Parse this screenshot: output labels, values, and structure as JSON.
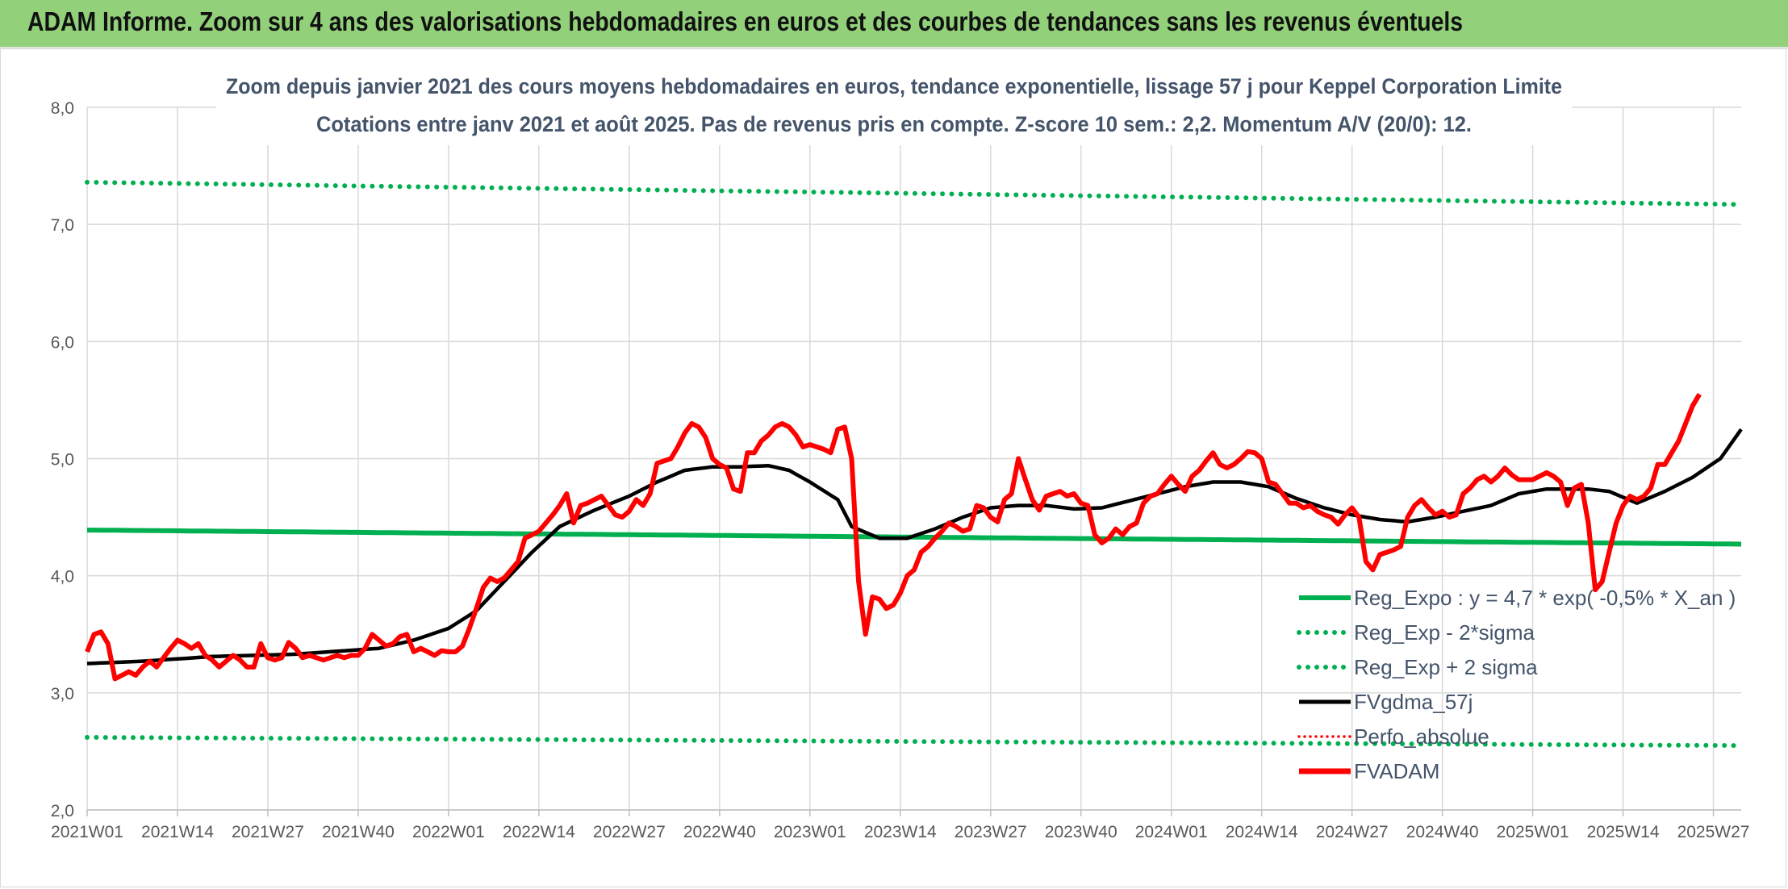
{
  "header": {
    "title": "ADAM Informe. Zoom sur 4 ans des valorisations hebdomadaires en euros et des courbes de tendances sans les revenus éventuels"
  },
  "chart_data": {
    "type": "line",
    "subtitle_line1": "Zoom depuis janvier 2021 des cours moyens hebdomadaires en euros, tendance exponentielle, lissage 57 j pour Keppel Corporation Limite",
    "subtitle_line2": "Cotations entre janv 2021 et août 2025. Pas de revenus pris en compte. Z-score 10 sem.: 2,2. Momentum A/V (20/0): 12.",
    "ylim": [
      2.0,
      8.0
    ],
    "y_ticks": [
      "2,0",
      "3,0",
      "4,0",
      "5,0",
      "6,0",
      "7,0",
      "8,0"
    ],
    "x_tick_labels": [
      "2021W01",
      "2021W14",
      "2021W27",
      "2021W40",
      "2022W01",
      "2022W14",
      "2022W27",
      "2022W40",
      "2023W01",
      "2023W14",
      "2023W27",
      "2023W40",
      "2024W01",
      "2024W14",
      "2024W27",
      "2024W40",
      "2025W01",
      "2025W14",
      "2025W27"
    ],
    "x_tick_index": [
      0,
      13,
      26,
      39,
      52,
      65,
      78,
      91,
      104,
      117,
      130,
      143,
      156,
      169,
      182,
      195,
      208,
      221,
      234
    ],
    "n_weeks": 239,
    "grid": true,
    "legend_position": "bottom-right",
    "colors": {
      "reg_expo": "#00b050",
      "bands": "#00b050",
      "fvgdma": "#000000",
      "perfo": "#ff0000",
      "fvadam": "#ff0000"
    },
    "legend": [
      "Reg_Expo : y = 4,7 * exp( -0,5% *  X_an )",
      "Reg_Exp - 2*sigma",
      "Reg_Exp + 2 sigma",
      "FVgdma_57j",
      "Perfo_absolue",
      "FVADAM"
    ],
    "series": [
      {
        "name": "Reg_Expo : y = 4,7 * exp( -0,5% *  X_an )",
        "style": "solid",
        "endpoints": [
          4.39,
          4.27
        ]
      },
      {
        "name": "Reg_Exp - 2*sigma",
        "style": "dotted",
        "endpoints": [
          2.62,
          2.55
        ]
      },
      {
        "name": "Reg_Exp + 2 sigma",
        "style": "dotted",
        "endpoints": [
          7.36,
          7.17
        ]
      },
      {
        "name": "FVgdma_57j",
        "style": "solid",
        "knots": [
          [
            0,
            3.25
          ],
          [
            8,
            3.27
          ],
          [
            18,
            3.31
          ],
          [
            30,
            3.33
          ],
          [
            42,
            3.38
          ],
          [
            47,
            3.45
          ],
          [
            52,
            3.55
          ],
          [
            56,
            3.7
          ],
          [
            60,
            3.95
          ],
          [
            64,
            4.2
          ],
          [
            68,
            4.42
          ],
          [
            73,
            4.56
          ],
          [
            78,
            4.68
          ],
          [
            82,
            4.8
          ],
          [
            86,
            4.9
          ],
          [
            90,
            4.93
          ],
          [
            94,
            4.93
          ],
          [
            98,
            4.94
          ],
          [
            101,
            4.9
          ],
          [
            104,
            4.8
          ],
          [
            108,
            4.65
          ],
          [
            110,
            4.42
          ],
          [
            114,
            4.32
          ],
          [
            118,
            4.32
          ],
          [
            122,
            4.4
          ],
          [
            126,
            4.5
          ],
          [
            130,
            4.58
          ],
          [
            134,
            4.6
          ],
          [
            138,
            4.6
          ],
          [
            142,
            4.57
          ],
          [
            146,
            4.58
          ],
          [
            150,
            4.64
          ],
          [
            154,
            4.7
          ],
          [
            158,
            4.76
          ],
          [
            162,
            4.8
          ],
          [
            166,
            4.8
          ],
          [
            170,
            4.76
          ],
          [
            174,
            4.66
          ],
          [
            178,
            4.58
          ],
          [
            182,
            4.52
          ],
          [
            186,
            4.48
          ],
          [
            190,
            4.46
          ],
          [
            194,
            4.5
          ],
          [
            198,
            4.55
          ],
          [
            202,
            4.6
          ],
          [
            206,
            4.7
          ],
          [
            210,
            4.74
          ],
          [
            216,
            4.74
          ],
          [
            219,
            4.72
          ],
          [
            223,
            4.62
          ],
          [
            227,
            4.72
          ],
          [
            231,
            4.84
          ],
          [
            235,
            5.0
          ],
          [
            238,
            5.25
          ]
        ]
      },
      {
        "name": "Perfo_absolue",
        "style": "dotted",
        "knots": []
      },
      {
        "name": "FVADAM",
        "style": "solid",
        "knots": [
          [
            0,
            3.35
          ],
          [
            1,
            3.5
          ],
          [
            2,
            3.52
          ],
          [
            3,
            3.42
          ],
          [
            4,
            3.12
          ],
          [
            5,
            3.15
          ],
          [
            6,
            3.18
          ],
          [
            7,
            3.15
          ],
          [
            8,
            3.22
          ],
          [
            9,
            3.27
          ],
          [
            10,
            3.22
          ],
          [
            11,
            3.3
          ],
          [
            12,
            3.38
          ],
          [
            13,
            3.45
          ],
          [
            14,
            3.42
          ],
          [
            15,
            3.38
          ],
          [
            16,
            3.42
          ],
          [
            17,
            3.32
          ],
          [
            18,
            3.28
          ],
          [
            19,
            3.22
          ],
          [
            20,
            3.27
          ],
          [
            21,
            3.32
          ],
          [
            22,
            3.28
          ],
          [
            23,
            3.22
          ],
          [
            24,
            3.22
          ],
          [
            25,
            3.42
          ],
          [
            26,
            3.3
          ],
          [
            27,
            3.28
          ],
          [
            28,
            3.3
          ],
          [
            29,
            3.43
          ],
          [
            30,
            3.38
          ],
          [
            31,
            3.3
          ],
          [
            32,
            3.32
          ],
          [
            33,
            3.3
          ],
          [
            34,
            3.28
          ],
          [
            35,
            3.3
          ],
          [
            36,
            3.32
          ],
          [
            37,
            3.3
          ],
          [
            38,
            3.32
          ],
          [
            39,
            3.32
          ],
          [
            40,
            3.38
          ],
          [
            41,
            3.5
          ],
          [
            42,
            3.45
          ],
          [
            43,
            3.4
          ],
          [
            44,
            3.42
          ],
          [
            45,
            3.48
          ],
          [
            46,
            3.5
          ],
          [
            47,
            3.35
          ],
          [
            48,
            3.38
          ],
          [
            49,
            3.35
          ],
          [
            50,
            3.32
          ],
          [
            51,
            3.36
          ],
          [
            52,
            3.35
          ],
          [
            53,
            3.35
          ],
          [
            54,
            3.4
          ],
          [
            55,
            3.55
          ],
          [
            56,
            3.72
          ],
          [
            57,
            3.9
          ],
          [
            58,
            3.98
          ],
          [
            59,
            3.95
          ],
          [
            60,
            3.98
          ],
          [
            61,
            4.05
          ],
          [
            62,
            4.12
          ],
          [
            63,
            4.32
          ],
          [
            64,
            4.35
          ],
          [
            65,
            4.38
          ],
          [
            66,
            4.45
          ],
          [
            67,
            4.52
          ],
          [
            68,
            4.6
          ],
          [
            69,
            4.7
          ],
          [
            70,
            4.45
          ],
          [
            71,
            4.6
          ],
          [
            72,
            4.62
          ],
          [
            73,
            4.65
          ],
          [
            74,
            4.68
          ],
          [
            75,
            4.6
          ],
          [
            76,
            4.52
          ],
          [
            77,
            4.5
          ],
          [
            78,
            4.55
          ],
          [
            79,
            4.65
          ],
          [
            80,
            4.6
          ],
          [
            81,
            4.7
          ],
          [
            82,
            4.96
          ],
          [
            83,
            4.98
          ],
          [
            84,
            5.0
          ],
          [
            85,
            5.1
          ],
          [
            86,
            5.22
          ],
          [
            87,
            5.3
          ],
          [
            88,
            5.27
          ],
          [
            89,
            5.18
          ],
          [
            90,
            5.0
          ],
          [
            91,
            4.95
          ],
          [
            92,
            4.92
          ],
          [
            93,
            4.74
          ],
          [
            94,
            4.72
          ],
          [
            95,
            5.05
          ],
          [
            96,
            5.05
          ],
          [
            97,
            5.15
          ],
          [
            98,
            5.2
          ],
          [
            99,
            5.27
          ],
          [
            100,
            5.3
          ],
          [
            101,
            5.27
          ],
          [
            102,
            5.2
          ],
          [
            103,
            5.1
          ],
          [
            104,
            5.12
          ],
          [
            105,
            5.1
          ],
          [
            106,
            5.08
          ],
          [
            107,
            5.05
          ],
          [
            108,
            5.25
          ],
          [
            109,
            5.27
          ],
          [
            110,
            5.0
          ],
          [
            111,
            3.95
          ],
          [
            112,
            3.5
          ],
          [
            113,
            3.82
          ],
          [
            114,
            3.8
          ],
          [
            115,
            3.72
          ],
          [
            116,
            3.75
          ],
          [
            117,
            3.85
          ],
          [
            118,
            4.0
          ],
          [
            119,
            4.05
          ],
          [
            120,
            4.2
          ],
          [
            121,
            4.25
          ],
          [
            122,
            4.32
          ],
          [
            123,
            4.38
          ],
          [
            124,
            4.45
          ],
          [
            125,
            4.42
          ],
          [
            126,
            4.38
          ],
          [
            127,
            4.4
          ],
          [
            128,
            4.6
          ],
          [
            129,
            4.58
          ],
          [
            130,
            4.5
          ],
          [
            131,
            4.46
          ],
          [
            132,
            4.65
          ],
          [
            133,
            4.7
          ],
          [
            134,
            5.0
          ],
          [
            135,
            4.82
          ],
          [
            136,
            4.65
          ],
          [
            137,
            4.56
          ],
          [
            138,
            4.68
          ],
          [
            139,
            4.7
          ],
          [
            140,
            4.72
          ],
          [
            141,
            4.68
          ],
          [
            142,
            4.7
          ],
          [
            143,
            4.62
          ],
          [
            144,
            4.6
          ],
          [
            145,
            4.35
          ],
          [
            146,
            4.28
          ],
          [
            147,
            4.32
          ],
          [
            148,
            4.4
          ],
          [
            149,
            4.35
          ],
          [
            150,
            4.42
          ],
          [
            151,
            4.45
          ],
          [
            152,
            4.62
          ],
          [
            153,
            4.68
          ],
          [
            154,
            4.7
          ],
          [
            155,
            4.78
          ],
          [
            156,
            4.85
          ],
          [
            157,
            4.78
          ],
          [
            158,
            4.72
          ],
          [
            159,
            4.85
          ],
          [
            160,
            4.9
          ],
          [
            161,
            4.98
          ],
          [
            162,
            5.05
          ],
          [
            163,
            4.95
          ],
          [
            164,
            4.92
          ],
          [
            165,
            4.95
          ],
          [
            166,
            5.0
          ],
          [
            167,
            5.06
          ],
          [
            168,
            5.05
          ],
          [
            169,
            5.0
          ],
          [
            170,
            4.8
          ],
          [
            171,
            4.78
          ],
          [
            172,
            4.7
          ],
          [
            173,
            4.62
          ],
          [
            174,
            4.62
          ],
          [
            175,
            4.58
          ],
          [
            176,
            4.6
          ],
          [
            177,
            4.55
          ],
          [
            178,
            4.52
          ],
          [
            179,
            4.5
          ],
          [
            180,
            4.44
          ],
          [
            181,
            4.52
          ],
          [
            182,
            4.58
          ],
          [
            183,
            4.5
          ],
          [
            184,
            4.12
          ],
          [
            185,
            4.05
          ],
          [
            186,
            4.18
          ],
          [
            187,
            4.2
          ],
          [
            188,
            4.22
          ],
          [
            189,
            4.25
          ],
          [
            190,
            4.5
          ],
          [
            191,
            4.6
          ],
          [
            192,
            4.65
          ],
          [
            193,
            4.58
          ],
          [
            194,
            4.52
          ],
          [
            195,
            4.55
          ],
          [
            196,
            4.5
          ],
          [
            197,
            4.52
          ],
          [
            198,
            4.7
          ],
          [
            199,
            4.75
          ],
          [
            200,
            4.82
          ],
          [
            201,
            4.85
          ],
          [
            202,
            4.8
          ],
          [
            203,
            4.85
          ],
          [
            204,
            4.92
          ],
          [
            205,
            4.86
          ],
          [
            206,
            4.82
          ],
          [
            207,
            4.82
          ],
          [
            208,
            4.82
          ],
          [
            209,
            4.85
          ],
          [
            210,
            4.88
          ],
          [
            211,
            4.85
          ],
          [
            212,
            4.8
          ],
          [
            213,
            4.6
          ],
          [
            214,
            4.75
          ],
          [
            215,
            4.78
          ],
          [
            216,
            4.45
          ],
          [
            217,
            3.88
          ],
          [
            218,
            3.95
          ],
          [
            219,
            4.2
          ],
          [
            220,
            4.45
          ],
          [
            221,
            4.6
          ],
          [
            222,
            4.68
          ],
          [
            223,
            4.65
          ],
          [
            224,
            4.68
          ],
          [
            225,
            4.75
          ],
          [
            226,
            4.95
          ],
          [
            227,
            4.95
          ],
          [
            228,
            5.05
          ],
          [
            229,
            5.15
          ],
          [
            230,
            5.3
          ],
          [
            231,
            5.45
          ],
          [
            232,
            5.55
          ]
        ]
      }
    ]
  }
}
